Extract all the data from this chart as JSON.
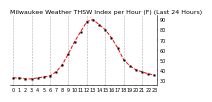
{
  "title": "Milwaukee Weather THSW Index per Hour (F) (Last 24 Hours)",
  "hours": [
    0,
    1,
    2,
    3,
    4,
    5,
    6,
    7,
    8,
    9,
    10,
    11,
    12,
    13,
    14,
    15,
    16,
    17,
    18,
    19,
    20,
    21,
    22,
    23
  ],
  "values": [
    32,
    32,
    31,
    31,
    32,
    33,
    34,
    38,
    45,
    56,
    68,
    78,
    88,
    90,
    85,
    80,
    72,
    62,
    50,
    44,
    40,
    38,
    36,
    35
  ],
  "line_color": "#ff0000",
  "marker_color": "#000000",
  "bg_color": "#ffffff",
  "grid_color": "#999999",
  "title_color": "#000000",
  "ylim_min": 25,
  "ylim_max": 95,
  "ytick_positions": [
    30,
    40,
    50,
    60,
    70,
    80,
    90
  ],
  "ytick_labels": [
    "30",
    "40",
    "50",
    "60",
    "70",
    "80",
    "90"
  ],
  "xtick_positions": [
    0,
    1,
    2,
    3,
    4,
    5,
    6,
    7,
    8,
    9,
    10,
    11,
    12,
    13,
    14,
    15,
    16,
    17,
    18,
    19,
    20,
    21,
    22,
    23
  ],
  "xtick_labels": [
    "0",
    "1",
    "2",
    "3",
    "4",
    "5",
    "6",
    "7",
    "8",
    "9",
    "10",
    "11",
    "12",
    "13",
    "14",
    "15",
    "16",
    "17",
    "18",
    "19",
    "20",
    "21",
    "22",
    "23"
  ],
  "grid_xticks": [
    0,
    3,
    6,
    9,
    12,
    15,
    18,
    21
  ],
  "title_fontsize": 4.5,
  "tick_fontsize": 3.5,
  "line_width": 0.7,
  "marker_size": 1.2
}
